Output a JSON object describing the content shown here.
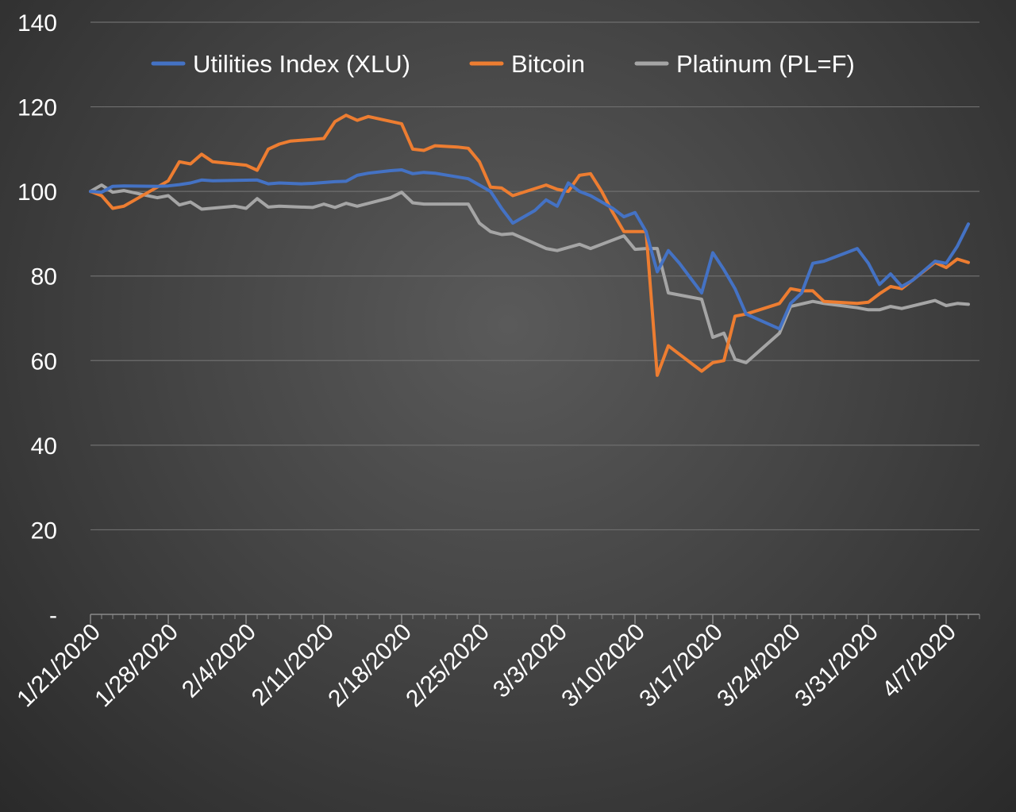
{
  "chart_data": {
    "type": "line",
    "title": "",
    "xlabel": "",
    "ylabel": "",
    "ylim": [
      0,
      140
    ],
    "y_ticks": [
      0,
      20,
      40,
      60,
      80,
      100,
      120,
      140
    ],
    "y_tick_labels": [
      "-",
      "20",
      "40",
      "60",
      "80",
      "100",
      "120",
      "140"
    ],
    "x_ticks": [
      "2020-01-21",
      "2020-01-28",
      "2020-02-04",
      "2020-02-11",
      "2020-02-18",
      "2020-02-25",
      "2020-03-03",
      "2020-03-10",
      "2020-03-17",
      "2020-03-24",
      "2020-03-31",
      "2020-04-07"
    ],
    "x_tick_labels": [
      "1/21/2020",
      "1/28/2020",
      "2/4/2020",
      "2/11/2020",
      "2/18/2020",
      "2/25/2020",
      "3/3/2020",
      "3/10/2020",
      "3/17/2020",
      "3/24/2020",
      "3/31/2020",
      "4/7/2020"
    ],
    "xlim": [
      "2020-01-21",
      "2020-04-10"
    ],
    "grid": true,
    "legend_position": "top",
    "series": [
      {
        "name": "Utilities Index (XLU)",
        "color": "#4472C4",
        "points": [
          [
            "2020-01-21",
            100
          ],
          [
            "2020-01-22",
            99.8
          ],
          [
            "2020-01-23",
            101.2
          ],
          [
            "2020-01-24",
            101.3
          ],
          [
            "2020-01-27",
            101.2
          ],
          [
            "2020-01-28",
            101.3
          ],
          [
            "2020-01-29",
            101.6
          ],
          [
            "2020-01-30",
            102
          ],
          [
            "2020-01-31",
            102.7
          ],
          [
            "2020-02-01",
            102.5
          ],
          [
            "2020-02-03",
            102.6
          ],
          [
            "2020-02-05",
            102.7
          ],
          [
            "2020-02-06",
            101.8
          ],
          [
            "2020-02-07",
            102
          ],
          [
            "2020-02-09",
            101.8
          ],
          [
            "2020-02-10",
            101.9
          ],
          [
            "2020-02-12",
            102.3
          ],
          [
            "2020-02-13",
            102.4
          ],
          [
            "2020-02-14",
            103.8
          ],
          [
            "2020-02-15",
            104.3
          ],
          [
            "2020-02-17",
            104.9
          ],
          [
            "2020-02-18",
            105.1
          ],
          [
            "2020-02-19",
            104.2
          ],
          [
            "2020-02-20",
            104.5
          ],
          [
            "2020-02-21",
            104.3
          ],
          [
            "2020-02-24",
            103
          ],
          [
            "2020-02-25",
            101.5
          ],
          [
            "2020-02-26",
            100
          ],
          [
            "2020-02-27",
            96
          ],
          [
            "2020-02-28",
            92.5
          ],
          [
            "2020-03-01",
            95.5
          ],
          [
            "2020-03-02",
            98
          ],
          [
            "2020-03-03",
            96.5
          ],
          [
            "2020-03-04",
            102
          ],
          [
            "2020-03-05",
            100
          ],
          [
            "2020-03-06",
            99
          ],
          [
            "2020-03-08",
            96
          ],
          [
            "2020-03-09",
            94
          ],
          [
            "2020-03-10",
            95
          ],
          [
            "2020-03-11",
            90.5
          ],
          [
            "2020-03-12",
            81
          ],
          [
            "2020-03-13",
            86
          ],
          [
            "2020-03-14",
            83
          ],
          [
            "2020-03-16",
            76
          ],
          [
            "2020-03-17",
            85.5
          ],
          [
            "2020-03-18",
            81.5
          ],
          [
            "2020-03-19",
            77
          ],
          [
            "2020-03-20",
            71
          ],
          [
            "2020-03-23",
            67.5
          ],
          [
            "2020-03-24",
            73.5
          ],
          [
            "2020-03-25",
            76
          ],
          [
            "2020-03-26",
            83
          ],
          [
            "2020-03-27",
            83.5
          ],
          [
            "2020-03-30",
            86.5
          ],
          [
            "2020-03-31",
            83
          ],
          [
            "2020-04-01",
            78
          ],
          [
            "2020-04-02",
            80.5
          ],
          [
            "2020-04-03",
            77.5
          ],
          [
            "2020-04-04",
            79
          ],
          [
            "2020-04-06",
            83.5
          ],
          [
            "2020-04-07",
            83
          ],
          [
            "2020-04-08",
            87
          ],
          [
            "2020-04-09",
            92.3
          ]
        ]
      },
      {
        "name": "Bitcoin",
        "color": "#ED7D31",
        "points": [
          [
            "2020-01-21",
            100
          ],
          [
            "2020-01-22",
            99
          ],
          [
            "2020-01-23",
            96
          ],
          [
            "2020-01-24",
            96.5
          ],
          [
            "2020-01-25",
            98
          ],
          [
            "2020-01-28",
            102.5
          ],
          [
            "2020-01-29",
            107
          ],
          [
            "2020-01-30",
            106.5
          ],
          [
            "2020-01-31",
            108.8
          ],
          [
            "2020-02-01",
            107
          ],
          [
            "2020-02-04",
            106.2
          ],
          [
            "2020-02-05",
            105
          ],
          [
            "2020-02-06",
            110
          ],
          [
            "2020-02-07",
            111.2
          ],
          [
            "2020-02-08",
            111.9
          ],
          [
            "2020-02-10",
            112.3
          ],
          [
            "2020-02-11",
            112.5
          ],
          [
            "2020-02-12",
            116.5
          ],
          [
            "2020-02-13",
            118
          ],
          [
            "2020-02-14",
            116.8
          ],
          [
            "2020-02-15",
            117.7
          ],
          [
            "2020-02-18",
            116
          ],
          [
            "2020-02-19",
            110
          ],
          [
            "2020-02-20",
            109.7
          ],
          [
            "2020-02-21",
            110.8
          ],
          [
            "2020-02-23",
            110.5
          ],
          [
            "2020-02-24",
            110.2
          ],
          [
            "2020-02-25",
            107
          ],
          [
            "2020-02-26",
            101
          ],
          [
            "2020-02-27",
            100.8
          ],
          [
            "2020-02-28",
            99
          ],
          [
            "2020-03-02",
            101.5
          ],
          [
            "2020-03-03",
            100.5
          ],
          [
            "2020-03-04",
            100
          ],
          [
            "2020-03-05",
            103.8
          ],
          [
            "2020-03-06",
            104.2
          ],
          [
            "2020-03-07",
            100
          ],
          [
            "2020-03-08",
            95
          ],
          [
            "2020-03-09",
            90.5
          ],
          [
            "2020-03-11",
            90.5
          ],
          [
            "2020-03-12",
            56.5
          ],
          [
            "2020-03-13",
            63.5
          ],
          [
            "2020-03-14",
            61.5
          ],
          [
            "2020-03-16",
            57.5
          ],
          [
            "2020-03-17",
            59.5
          ],
          [
            "2020-03-18",
            60
          ],
          [
            "2020-03-19",
            70.5
          ],
          [
            "2020-03-20",
            71
          ],
          [
            "2020-03-23",
            73.5
          ],
          [
            "2020-03-24",
            77
          ],
          [
            "2020-03-25",
            76.5
          ],
          [
            "2020-03-26",
            76.5
          ],
          [
            "2020-03-27",
            74
          ],
          [
            "2020-03-30",
            73.5
          ],
          [
            "2020-03-31",
            73.8
          ],
          [
            "2020-04-01",
            75.8
          ],
          [
            "2020-04-02",
            77.5
          ],
          [
            "2020-04-03",
            77
          ],
          [
            "2020-04-06",
            83.2
          ],
          [
            "2020-04-07",
            82
          ],
          [
            "2020-04-08",
            84
          ],
          [
            "2020-04-09",
            83.2
          ]
        ]
      },
      {
        "name": "Platinum (PL=F)",
        "color": "#A5A5A5",
        "points": [
          [
            "2020-01-21",
            100
          ],
          [
            "2020-01-22",
            101.5
          ],
          [
            "2020-01-23",
            99.8
          ],
          [
            "2020-01-24",
            100.2
          ],
          [
            "2020-01-27",
            98.5
          ],
          [
            "2020-01-28",
            99
          ],
          [
            "2020-01-29",
            96.8
          ],
          [
            "2020-01-30",
            97.5
          ],
          [
            "2020-01-31",
            95.8
          ],
          [
            "2020-02-03",
            96.5
          ],
          [
            "2020-02-04",
            96
          ],
          [
            "2020-02-05",
            98.3
          ],
          [
            "2020-02-06",
            96.3
          ],
          [
            "2020-02-07",
            96.5
          ],
          [
            "2020-02-10",
            96.2
          ],
          [
            "2020-02-11",
            97
          ],
          [
            "2020-02-12",
            96.2
          ],
          [
            "2020-02-13",
            97.2
          ],
          [
            "2020-02-14",
            96.5
          ],
          [
            "2020-02-17",
            98.5
          ],
          [
            "2020-02-18",
            99.8
          ],
          [
            "2020-02-19",
            97.3
          ],
          [
            "2020-02-20",
            97
          ],
          [
            "2020-02-24",
            97
          ],
          [
            "2020-02-25",
            92.5
          ],
          [
            "2020-02-26",
            90.5
          ],
          [
            "2020-02-27",
            89.8
          ],
          [
            "2020-02-28",
            90
          ],
          [
            "2020-03-02",
            86.5
          ],
          [
            "2020-03-03",
            86
          ],
          [
            "2020-03-05",
            87.5
          ],
          [
            "2020-03-06",
            86.5
          ],
          [
            "2020-03-09",
            89.5
          ],
          [
            "2020-03-10",
            86.3
          ],
          [
            "2020-03-11",
            86.5
          ],
          [
            "2020-03-12",
            86.5
          ],
          [
            "2020-03-13",
            76
          ],
          [
            "2020-03-16",
            74.5
          ],
          [
            "2020-03-17",
            65.5
          ],
          [
            "2020-03-18",
            66.5
          ],
          [
            "2020-03-19",
            60.3
          ],
          [
            "2020-03-20",
            59.5
          ],
          [
            "2020-03-23",
            66.5
          ],
          [
            "2020-03-24",
            72.8
          ],
          [
            "2020-03-26",
            74
          ],
          [
            "2020-03-27",
            73.5
          ],
          [
            "2020-03-30",
            72.5
          ],
          [
            "2020-03-31",
            72
          ],
          [
            "2020-04-01",
            72
          ],
          [
            "2020-04-02",
            72.8
          ],
          [
            "2020-04-03",
            72.3
          ],
          [
            "2020-04-06",
            74.2
          ],
          [
            "2020-04-07",
            73
          ],
          [
            "2020-04-08",
            73.5
          ],
          [
            "2020-04-09",
            73.3
          ]
        ]
      }
    ]
  }
}
